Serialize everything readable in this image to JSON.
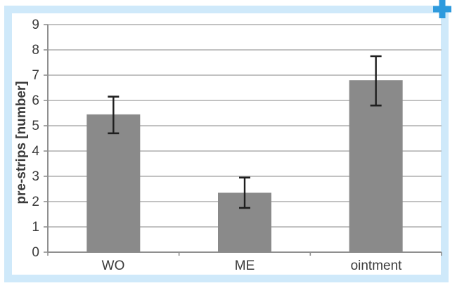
{
  "figure": {
    "frame_color": "#cfe9fa",
    "plus_icon_color": "#2e9add",
    "background_color": "#ffffff",
    "plus_icon_name": "expand-figure"
  },
  "chart_data": {
    "type": "bar",
    "title": "",
    "xlabel": "",
    "ylabel": "pre-strips [number]",
    "categories": [
      "WO",
      "ME",
      "ointment"
    ],
    "values": [
      5.45,
      2.35,
      6.8
    ],
    "error_bars": [
      {
        "low": 4.7,
        "high": 6.15
      },
      {
        "low": 1.75,
        "high": 2.95
      },
      {
        "low": 5.8,
        "high": 7.75
      }
    ],
    "ylim": [
      0,
      9
    ],
    "yticks": [
      0,
      1,
      2,
      3,
      4,
      5,
      6,
      7,
      8,
      9
    ],
    "grid": true,
    "legend": "none",
    "colors": {
      "bar": "#8a8a8a",
      "gridline": "#aeaeae",
      "axis": "#8f8f8f",
      "error_bar": "#1f1f1f",
      "text": "#3a3a3a"
    }
  }
}
